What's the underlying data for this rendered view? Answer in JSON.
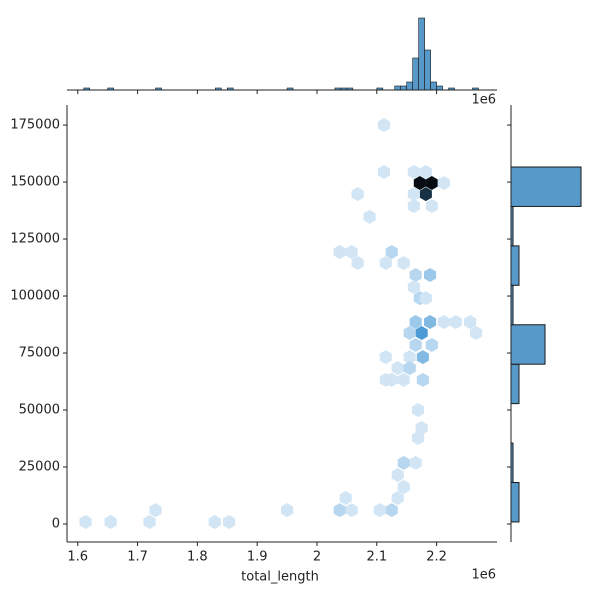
{
  "chart_data": {
    "type": "hexbin",
    "x_label": "total_length",
    "x_offset_label": "1e6",
    "xlim": [
      1.582,
      2.301
    ],
    "ylim": [
      -7900,
      183800
    ],
    "xticks": [
      1.6,
      1.7,
      1.8,
      1.9,
      2.0,
      2.1,
      2.2
    ],
    "yticks": [
      0,
      25000,
      50000,
      75000,
      100000,
      125000,
      150000,
      175000
    ],
    "color": "#4c9bd6",
    "x": [
      2.172,
      2.192,
      2.182,
      2.162,
      2.182,
      2.212,
      2.162,
      2.162,
      2.192,
      2.068,
      2.088,
      2.112,
      2.112,
      2.125,
      2.038,
      2.058,
      2.068,
      2.115,
      2.145,
      2.189,
      2.165,
      2.172,
      2.162,
      2.182,
      2.165,
      2.189,
      2.175,
      2.155,
      2.212,
      2.232,
      2.256,
      2.266,
      2.165,
      2.192,
      2.177,
      2.155,
      2.115,
      2.135,
      2.155,
      2.125,
      2.145,
      2.177,
      2.115,
      2.169,
      2.175,
      2.169,
      2.145,
      2.165,
      2.135,
      2.145,
      2.135,
      2.125,
      2.105,
      2.048,
      2.038,
      2.058,
      1.95,
      1.73,
      1.72,
      1.655,
      1.613,
      1.829,
      1.853
    ],
    "y": [
      149600,
      149600,
      144700,
      154400,
      154400,
      149600,
      144700,
      139500,
      139500,
      144700,
      134700,
      154400,
      175000,
      119300,
      119300,
      119300,
      114500,
      114500,
      114500,
      109200,
      109200,
      99100,
      103900,
      99100,
      88600,
      88600,
      83800,
      83800,
      88600,
      88600,
      88600,
      83800,
      78500,
      78500,
      73200,
      73200,
      73200,
      68400,
      68400,
      63200,
      63200,
      63200,
      63200,
      50000,
      42100,
      37700,
      26800,
      26800,
      21500,
      16200,
      11400,
      6100,
      6100,
      11400,
      6100,
      6100,
      6100,
      6100,
      900,
      900,
      900,
      900,
      900
    ],
    "values": [
      10,
      10,
      9,
      1,
      1,
      1,
      1,
      1,
      1,
      1,
      1,
      1,
      1,
      2,
      1,
      1,
      1,
      1,
      1,
      3,
      2,
      2,
      1,
      1,
      3,
      4,
      6,
      2,
      1,
      1,
      1,
      1,
      2,
      2,
      4,
      1,
      1,
      1,
      2,
      1,
      1,
      2,
      1,
      1,
      1,
      1,
      2,
      1,
      1,
      1,
      1,
      2,
      1,
      1,
      2,
      1,
      1,
      1,
      1,
      1,
      1,
      1,
      1
    ],
    "marginal_x": {
      "color": "#5799c9",
      "lim": [
        0,
        40
      ],
      "bins": [
        1.6,
        1.61,
        1.62,
        1.63,
        1.64,
        1.65,
        1.66,
        1.67,
        1.68,
        1.69,
        1.7,
        1.71,
        1.72,
        1.73,
        1.74,
        1.75,
        1.76,
        1.77,
        1.78,
        1.79,
        1.8,
        1.81,
        1.82,
        1.83,
        1.84,
        1.85,
        1.86,
        1.87,
        1.88,
        1.89,
        1.9,
        1.91,
        1.92,
        1.93,
        1.94,
        1.95,
        1.96,
        1.97,
        1.98,
        1.99,
        2.0,
        2.01,
        2.02,
        2.03,
        2.04,
        2.05,
        2.06,
        2.07,
        2.08,
        2.09,
        2.1,
        2.11,
        2.12,
        2.13,
        2.14,
        2.15,
        2.16,
        2.17,
        2.18,
        2.19,
        2.2,
        2.21,
        2.22,
        2.23,
        2.24,
        2.25,
        2.26,
        2.27
      ],
      "values": [
        0,
        1,
        0,
        0,
        0,
        1,
        0,
        0,
        0,
        0,
        0,
        0,
        0,
        1,
        0,
        0,
        0,
        0,
        0,
        0,
        0,
        0,
        0,
        1,
        0,
        1,
        0,
        0,
        0,
        0,
        0,
        0,
        0,
        0,
        0,
        1,
        0,
        0,
        0,
        0,
        0,
        0,
        0,
        1,
        1,
        1,
        0,
        0,
        0,
        0,
        1,
        0,
        0,
        2,
        2,
        4,
        16,
        36,
        20,
        4,
        2,
        0,
        1,
        0,
        0,
        0,
        1
      ]
    },
    "marginal_y": {
      "color": "#5799c9",
      "lim": [
        0,
        40
      ],
      "bins": [
        900,
        18200,
        35500,
        52800,
        70100,
        87400,
        104700,
        122000,
        139300,
        156600,
        173900
      ],
      "values": [
        4,
        1,
        0,
        4,
        17,
        1,
        4,
        1,
        35,
        0
      ]
    }
  }
}
